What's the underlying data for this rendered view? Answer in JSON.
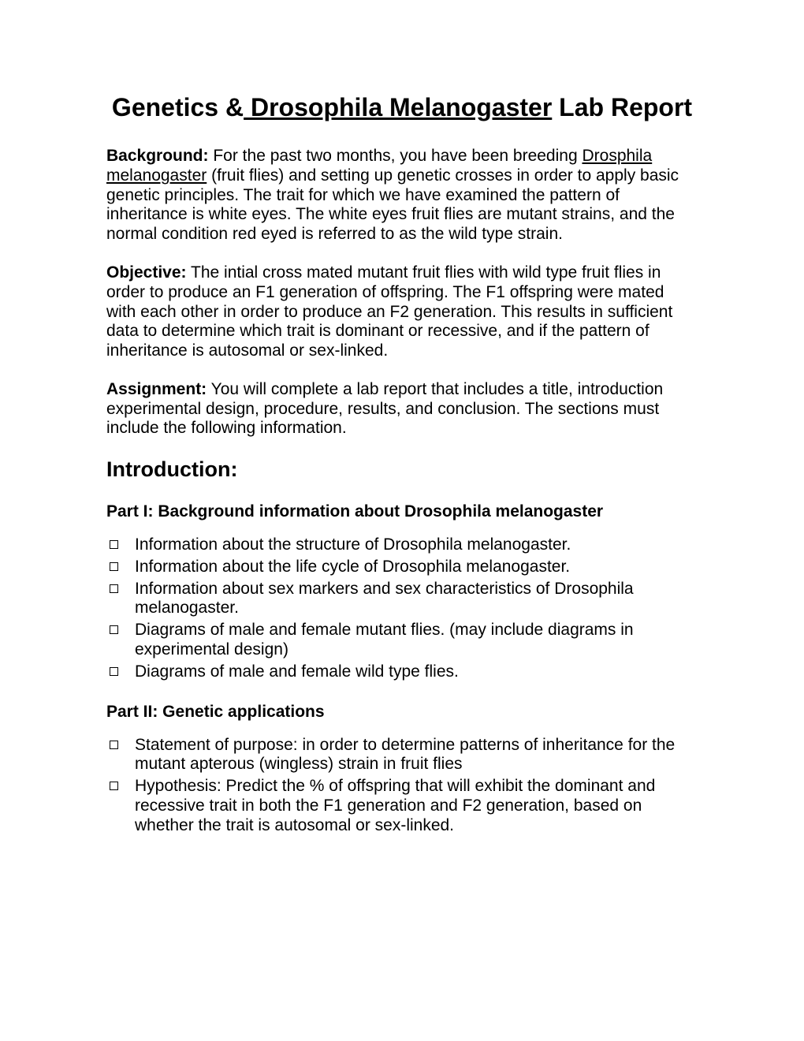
{
  "title": {
    "pre": "Genetics &",
    "underlined": " Drosophila Melanogaster",
    "post": " Lab Report"
  },
  "background": {
    "label": "Background:",
    "pre": "   For the past two months, you have been breeding ",
    "u1": "Drosphila melanogaster",
    "post": " (fruit flies) and setting up genetic crosses in order to apply basic genetic principles.  The trait for which we have examined the pattern of inheritance is white eyes.  The white eyes fruit flies are mutant strains, and the normal condition red eyed is referred to as the wild type strain."
  },
  "objective": {
    "label": "Objective:",
    "text": " The intial cross mated mutant fruit flies with wild type fruit flies in order to produce an F1 generation of offspring.  The F1 offspring were mated with each other in order to produce an F2 generation.  This results in sufficient data to determine which trait is dominant or recessive, and if the pattern of inheritance is autosomal or sex-linked."
  },
  "assignment": {
    "label": "Assignment:",
    "text": "  You will complete a lab report that includes a title, introduction experimental design, procedure, results, and conclusion.  The sections must include the following information."
  },
  "introHeading": "Introduction:",
  "part1": {
    "heading": "Part I:  Background information about Drosophila melanogaster",
    "items": [
      "Information about the structure of  Drosophila melanogaster.",
      "Information about the life cycle of Drosophila melanogaster.",
      "Information about sex markers and sex characteristics of Drosophila melanogaster.",
      "Diagrams of male and female mutant flies. (may include diagrams in experimental design)",
      "Diagrams of male and female wild type flies."
    ]
  },
  "part2": {
    "heading": "Part II: Genetic applications",
    "items": [
      "Statement of purpose: in order to determine patterns of inheritance for the mutant apterous (wingless) strain in fruit flies",
      "Hypothesis:  Predict the % of offspring that will exhibit the dominant and recessive trait in both the F1 generation and F2 generation, based on whether the trait is autosomal or sex-linked."
    ]
  }
}
